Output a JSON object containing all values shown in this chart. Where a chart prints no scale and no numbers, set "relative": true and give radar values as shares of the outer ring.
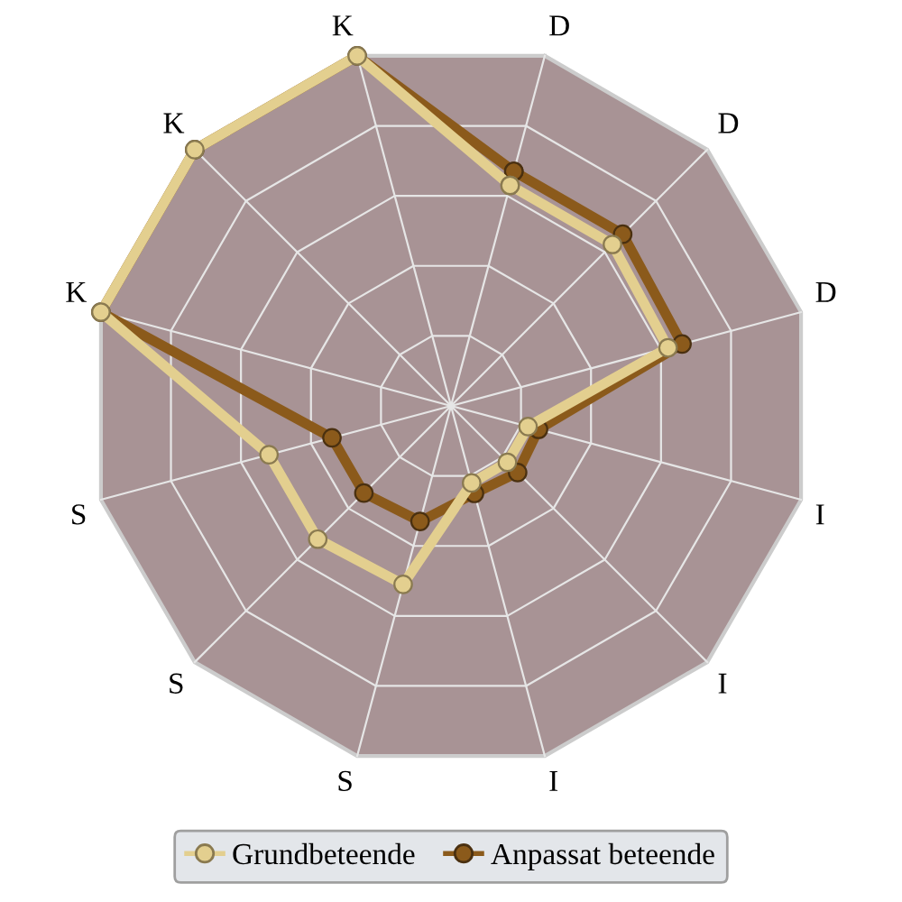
{
  "chart_data": {
    "type": "radar",
    "relative": true,
    "grid": true,
    "legend": "bottom",
    "marker": "circle",
    "line_style": "solid",
    "categories": [
      "D",
      "D",
      "D",
      "I",
      "I",
      "I",
      "S",
      "S",
      "S",
      "K",
      "K",
      "K"
    ],
    "series": [
      {
        "name": "Grundbeteende",
        "color": "#e3cf8f",
        "values": [
          0.63,
          0.63,
          0.62,
          0.22,
          0.22,
          0.22,
          0.51,
          0.52,
          0.52,
          1.0,
          1.0,
          1.0
        ]
      },
      {
        "name": "Anpassat beteende",
        "color": "#8b5a1b",
        "values": [
          0.67,
          0.67,
          0.66,
          0.25,
          0.26,
          0.25,
          0.33,
          0.34,
          0.34,
          1.0,
          1.0,
          1.0
        ]
      }
    ]
  }
}
